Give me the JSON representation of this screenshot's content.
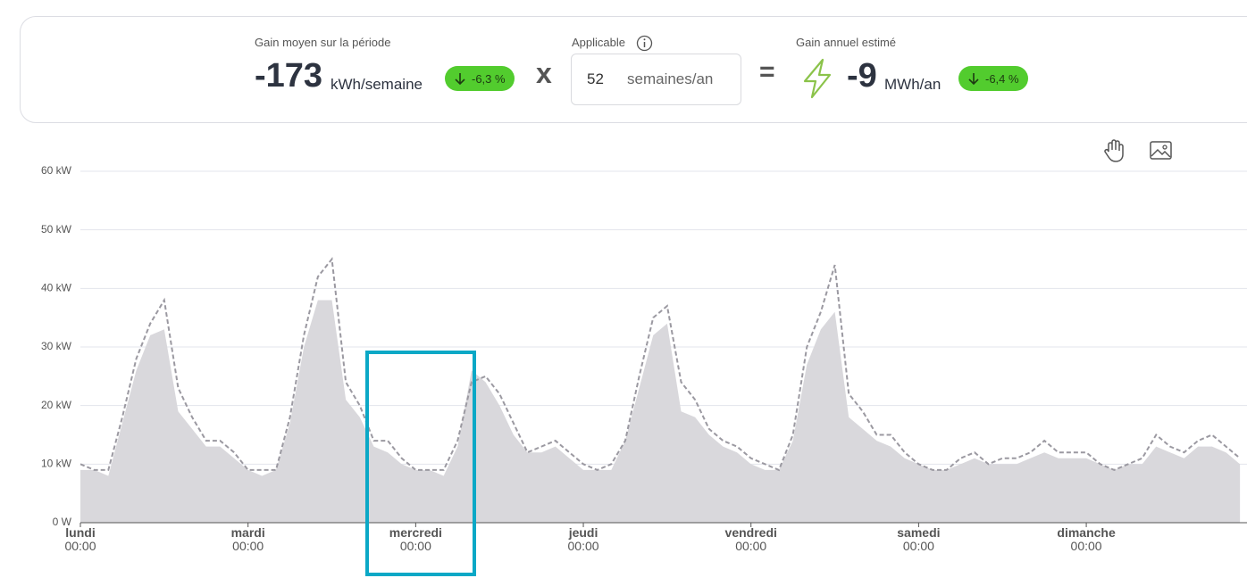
{
  "header": {
    "gain_label": "Gain moyen sur la période",
    "gain_value": "-173",
    "gain_unit": "kWh/semaine",
    "gain_change": "-6,3 %",
    "multiplier_sign": "x",
    "applicable_label": "Applicable",
    "weeks_value": "52",
    "weeks_unit": "semaines/an",
    "equals_sign": "=",
    "annual_label": "Gain annuel estimé",
    "annual_value": "-9",
    "annual_unit": "MWh/an",
    "annual_change": "-6,4 %"
  },
  "chart_data": {
    "type": "area-line",
    "x": [
      0,
      2,
      4,
      6,
      8,
      10,
      12,
      14,
      16,
      18,
      20,
      22,
      24,
      26,
      28,
      30,
      32,
      34,
      36,
      38,
      40,
      42,
      44,
      46,
      48,
      50,
      52,
      54,
      56,
      58,
      60,
      62,
      64,
      66,
      68,
      70,
      72,
      74,
      76,
      78,
      80,
      82,
      84,
      86,
      88,
      90,
      92,
      94,
      96,
      98,
      100,
      102,
      104,
      106,
      108,
      110,
      112,
      114,
      116,
      118,
      120,
      122,
      124,
      126,
      128,
      130,
      132,
      134,
      136,
      138,
      140,
      142,
      144,
      146,
      148,
      150,
      152,
      154,
      156,
      158,
      160,
      162,
      164,
      166
    ],
    "xlim": [
      0,
      168
    ],
    "xticks": [
      {
        "value": 0,
        "label": "lundi"
      },
      {
        "value": 24,
        "label": "mardi"
      },
      {
        "value": 48,
        "label": "mercredi"
      },
      {
        "value": 72,
        "label": "jeudi"
      },
      {
        "value": 96,
        "label": "vendredi"
      },
      {
        "value": 120,
        "label": "samedi"
      },
      {
        "value": 144,
        "label": "dimanche"
      }
    ],
    "xtick_times": [
      "00:00",
      "00:00",
      "00:00",
      "00:00",
      "00:00",
      "00:00",
      "00:00"
    ],
    "ylim": [
      0,
      60
    ],
    "yticks": [
      {
        "value": 0,
        "label": "0 W"
      },
      {
        "value": 10,
        "label": "10 kW"
      },
      {
        "value": 20,
        "label": "20 kW"
      },
      {
        "value": 30,
        "label": "30 kW"
      },
      {
        "value": 40,
        "label": "40 kW"
      },
      {
        "value": 50,
        "label": "50 kW"
      },
      {
        "value": 60,
        "label": "60 kW"
      }
    ],
    "grid": true,
    "series": [
      {
        "style": "area",
        "color": "#d9d8dc",
        "values": [
          9,
          9,
          8,
          17,
          26,
          32,
          33,
          19,
          16,
          13,
          13,
          11,
          9,
          8,
          9,
          17,
          30,
          38,
          38,
          21,
          18,
          13,
          12,
          10,
          9,
          9,
          8,
          13,
          26,
          24,
          20,
          15,
          12,
          12,
          13,
          11,
          9,
          9,
          9,
          14,
          23,
          32,
          34,
          19,
          18,
          15,
          13,
          12,
          10,
          9,
          9,
          14,
          27,
          33,
          36,
          18,
          16,
          14,
          13,
          11,
          10,
          9,
          9,
          10,
          11,
          10,
          10,
          10,
          11,
          12,
          11,
          11,
          11,
          10,
          9,
          10,
          10,
          13,
          12,
          11,
          13,
          13,
          12,
          10
        ]
      },
      {
        "style": "dashed",
        "color": "#9b99a1",
        "values": [
          10,
          9,
          9,
          18,
          28,
          34,
          38,
          23,
          18,
          14,
          14,
          12,
          9,
          9,
          9,
          18,
          32,
          42,
          45,
          24,
          20,
          14,
          14,
          11,
          9,
          9,
          9,
          14,
          24,
          25,
          22,
          17,
          12,
          13,
          14,
          12,
          10,
          9,
          10,
          14,
          25,
          35,
          37,
          24,
          21,
          16,
          14,
          13,
          11,
          10,
          9,
          15,
          30,
          36,
          44,
          22,
          19,
          15,
          15,
          12,
          10,
          9,
          9,
          11,
          12,
          10,
          11,
          11,
          12,
          14,
          12,
          12,
          12,
          10,
          9,
          10,
          11,
          15,
          13,
          12,
          14,
          15,
          13,
          11
        ]
      }
    ]
  }
}
